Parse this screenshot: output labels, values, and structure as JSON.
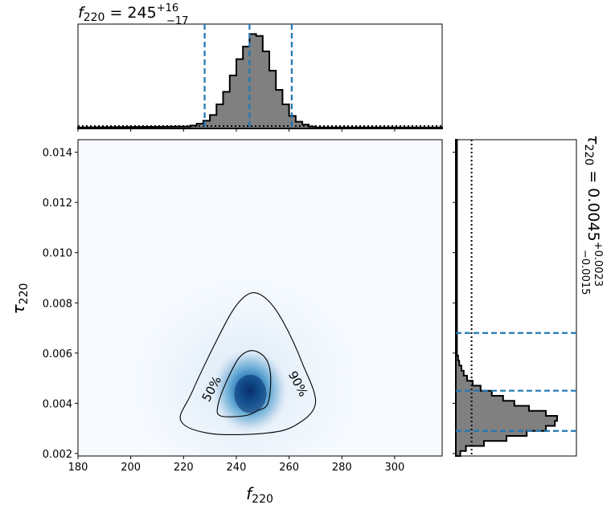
{
  "chart_data": {
    "type": "heatmap",
    "joint": {
      "xlabel": {
        "base": "f",
        "sub": "220"
      },
      "ylabel": {
        "base": "τ",
        "sub": "220"
      },
      "xlim": [
        180,
        318
      ],
      "ylim": [
        0.0019,
        0.0145
      ],
      "xticks": [
        180,
        200,
        220,
        240,
        260,
        280,
        300
      ],
      "yticks": [
        0.002,
        0.004,
        0.006,
        0.008,
        0.01,
        0.012,
        0.014
      ],
      "ytick_labels": [
        "0.002",
        "0.004",
        "0.006",
        "0.008",
        "0.010",
        "0.012",
        "0.014"
      ],
      "peak": {
        "x": 245,
        "y": 0.0045
      },
      "colormap": [
        "#f7fbff",
        "#c6dbef",
        "#6baed6",
        "#2171b5",
        "#08306b"
      ],
      "contours": [
        {
          "label": "50%",
          "points": [
            [
              246,
              0.0061
            ],
            [
              251,
              0.0058
            ],
            [
              253,
              0.0051
            ],
            [
              252,
              0.004
            ],
            [
              248,
              0.0037
            ],
            [
              243,
              0.0035
            ],
            [
              234,
              0.0035
            ],
            [
              233,
              0.0039
            ],
            [
              236,
              0.0048
            ],
            [
              241,
              0.0058
            ]
          ]
        },
        {
          "label": "90%",
          "points": [
            [
              246,
              0.0084
            ],
            [
              252,
              0.0081
            ],
            [
              258,
              0.0072
            ],
            [
              265,
              0.0056
            ],
            [
              270,
              0.004
            ],
            [
              262,
              0.0031
            ],
            [
              250,
              0.0028
            ],
            [
              230,
              0.0028
            ],
            [
              219,
              0.0033
            ],
            [
              223,
              0.0044
            ],
            [
              233,
              0.0066
            ],
            [
              240,
              0.0079
            ]
          ]
        }
      ]
    },
    "top_marginal": {
      "type": "histogram",
      "title": {
        "base": "f",
        "sub": "220",
        "eq": " = 245",
        "sup": "+16",
        "sub2": "−17"
      },
      "bins_start": 220,
      "bin_width": 2.5,
      "counts": [
        2,
        3,
        5,
        8,
        14,
        25,
        38,
        55,
        72,
        85,
        98,
        96,
        80,
        60,
        40,
        25,
        13,
        7,
        4,
        2,
        1
      ],
      "tail_level": 1,
      "ymax": 100,
      "median": 245,
      "lower": 228,
      "upper": 261,
      "prior_level": 2.5
    },
    "right_marginal": {
      "type": "histogram",
      "title": {
        "base": "τ",
        "sub": "220",
        "eq": " = 0.0045",
        "sup": "+0.0023",
        "sub2": "−0.0015"
      },
      "bins_start": 0.0019,
      "bin_width": 0.0002,
      "counts": [
        4,
        9,
        25,
        45,
        63,
        80,
        88,
        90,
        80,
        65,
        52,
        42,
        32,
        22,
        15,
        10,
        7,
        5,
        3,
        2,
        1
      ],
      "tail_level": 1,
      "xmax": 100,
      "median": 0.0045,
      "lower": 0.0029,
      "upper": 0.0068,
      "prior_level": 14
    },
    "colors": {
      "histogram_fill": "#808080",
      "dashed_lines": "#1f77b4",
      "outline": "#000000"
    }
  }
}
